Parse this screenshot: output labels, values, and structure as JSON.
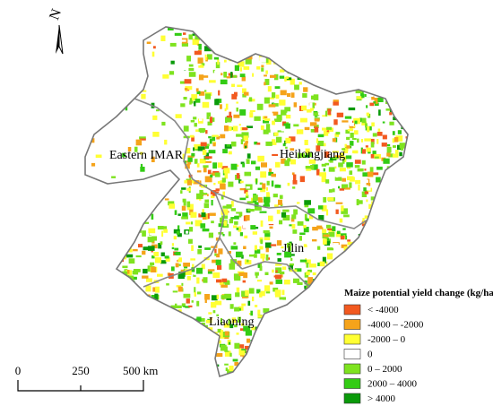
{
  "north_arrow": {
    "label": "N"
  },
  "regions": [
    {
      "label": "Eastern IMAR"
    },
    {
      "label": "Heilongjiang"
    },
    {
      "label": "Jilin"
    },
    {
      "label": "Liaoning"
    }
  ],
  "legend": {
    "title": "Maize potential yield change (kg/ha)",
    "items": [
      {
        "label": "< -4000",
        "color": "#f2591f"
      },
      {
        "label": "-4000 – -2000",
        "color": "#f5a31a"
      },
      {
        "label": "-2000 – 0",
        "color": "#ffff33"
      },
      {
        "label": "0",
        "color": "#ffffff"
      },
      {
        "label": "0 – 2000",
        "color": "#7ee31f"
      },
      {
        "label": "2000 – 4000",
        "color": "#33cc14"
      },
      {
        "label": "> 4000",
        "color": "#0a9a0a"
      }
    ]
  },
  "scale_bar": {
    "labels": [
      "0",
      "250",
      "500 km"
    ]
  }
}
